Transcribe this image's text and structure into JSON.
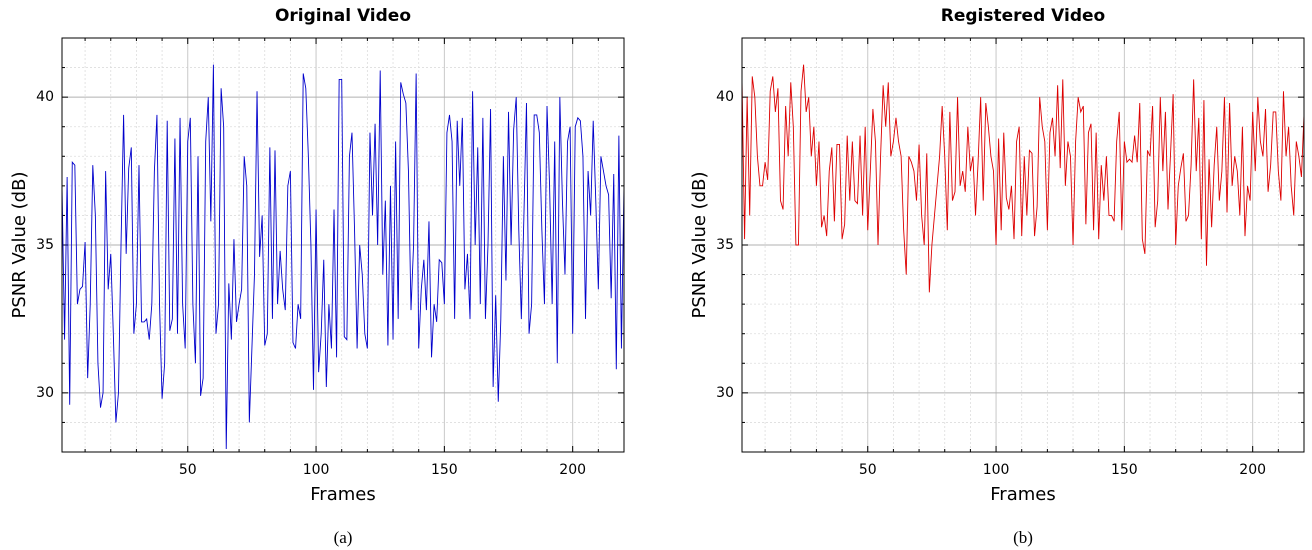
{
  "chart_data": [
    {
      "type": "line",
      "title": "Original Video",
      "xlabel": "Frames",
      "ylabel": "PSNR Value (dB)",
      "caption": "(a)",
      "color": "#0000cc",
      "xlim": [
        1,
        220
      ],
      "ylim": [
        28,
        42
      ],
      "xticks": [
        50,
        100,
        150,
        200
      ],
      "yticks": [
        30,
        35,
        40
      ],
      "xminorticks": [
        10,
        20,
        30,
        40,
        60,
        70,
        80,
        90,
        110,
        120,
        130,
        140,
        160,
        170,
        180,
        190,
        210,
        220
      ],
      "yminorticks": [
        29,
        31,
        32,
        33,
        34,
        36,
        37,
        38,
        39,
        41
      ],
      "grid": true,
      "x": [
        1,
        2,
        3,
        4,
        5,
        6,
        7,
        8,
        9,
        10,
        11,
        12,
        13,
        14,
        15,
        16,
        17,
        18,
        19,
        20,
        21,
        22,
        23,
        24,
        25,
        26,
        27,
        28,
        29,
        30,
        31,
        32,
        33,
        34,
        35,
        36,
        37,
        38,
        39,
        40,
        41,
        42,
        43,
        44,
        45,
        46,
        47,
        48,
        49,
        50,
        51,
        52,
        53,
        54,
        55,
        56,
        57,
        58,
        59,
        60,
        61,
        62,
        63,
        64,
        65,
        66,
        67,
        68,
        69,
        70,
        71,
        72,
        73,
        74,
        75,
        76,
        77,
        78,
        79,
        80,
        81,
        82,
        83,
        84,
        85,
        86,
        87,
        88,
        89,
        90,
        91,
        92,
        93,
        94,
        95,
        96,
        97,
        98,
        99,
        100,
        101,
        102,
        103,
        104,
        105,
        106,
        107,
        108,
        109,
        110,
        111,
        112,
        113,
        114,
        115,
        116,
        117,
        118,
        119,
        120,
        121,
        122,
        123,
        124,
        125,
        126,
        127,
        128,
        129,
        130,
        131,
        132,
        133,
        134,
        135,
        136,
        137,
        138,
        139,
        140,
        141,
        142,
        143,
        144,
        145,
        146,
        147,
        148,
        149,
        150,
        151,
        152,
        153,
        154,
        155,
        156,
        157,
        158,
        159,
        160,
        161,
        162,
        163,
        164,
        165,
        166,
        167,
        168,
        169,
        170,
        171,
        172,
        173,
        174,
        175,
        176,
        177,
        178,
        179,
        180,
        181,
        182,
        183,
        184,
        185,
        186,
        187,
        188,
        189,
        190,
        191,
        192,
        193,
        194,
        195,
        196,
        197,
        198,
        199,
        200,
        201,
        202,
        203,
        204,
        205,
        206,
        207,
        208,
        209,
        210,
        211,
        212,
        213,
        214,
        215,
        216,
        217,
        218,
        219,
        220
      ],
      "values": [
        37.0,
        31.8,
        37.3,
        29.6,
        37.8,
        37.7,
        33.0,
        33.5,
        33.6,
        35.1,
        30.5,
        33.0,
        37.7,
        36.0,
        31.0,
        29.5,
        30.0,
        37.5,
        33.5,
        34.7,
        32.0,
        29.0,
        30.0,
        35.0,
        39.4,
        34.7,
        37.6,
        38.3,
        32.0,
        33.0,
        37.7,
        32.4,
        32.4,
        32.5,
        31.8,
        33.0,
        37.5,
        39.4,
        33.0,
        29.8,
        31.0,
        39.2,
        32.1,
        32.5,
        38.6,
        32.0,
        39.3,
        33.0,
        31.5,
        38.5,
        39.3,
        33.0,
        31.0,
        38.0,
        29.9,
        30.5,
        38.5,
        40.0,
        35.8,
        41.1,
        32.0,
        33.0,
        40.3,
        39.0,
        28.1,
        33.7,
        31.8,
        35.2,
        32.4,
        33.0,
        33.5,
        38.0,
        37.0,
        29.0,
        31.5,
        34.0,
        40.2,
        34.6,
        36.0,
        31.6,
        32.0,
        38.3,
        32.5,
        38.2,
        33.0,
        34.8,
        33.5,
        32.8,
        37.0,
        37.5,
        31.7,
        31.5,
        33.0,
        32.5,
        40.8,
        40.3,
        38.0,
        35.0,
        30.1,
        36.2,
        30.7,
        32.0,
        34.5,
        30.2,
        33.0,
        31.5,
        36.2,
        31.2,
        40.6,
        40.6,
        31.9,
        31.8,
        38.0,
        38.8,
        35.5,
        31.5,
        35.0,
        34.0,
        32.0,
        31.5,
        38.8,
        36.0,
        39.1,
        35.0,
        40.9,
        34.0,
        36.5,
        31.6,
        37.0,
        31.8,
        38.5,
        32.5,
        40.5,
        40.1,
        39.8,
        37.5,
        32.8,
        35.0,
        40.8,
        31.5,
        33.5,
        34.5,
        32.8,
        35.8,
        31.2,
        33.0,
        32.4,
        34.5,
        34.4,
        33.0,
        38.8,
        39.4,
        38.5,
        32.5,
        39.2,
        37.0,
        39.3,
        33.5,
        34.7,
        32.5,
        40.2,
        35.0,
        38.3,
        33.0,
        39.3,
        32.5,
        35.0,
        39.6,
        30.2,
        33.3,
        29.7,
        32.5,
        38.0,
        33.8,
        39.5,
        35.0,
        38.9,
        40.0,
        35.5,
        32.5,
        36.0,
        39.8,
        32.0,
        33.0,
        39.4,
        39.4,
        38.8,
        35.5,
        33.0,
        39.7,
        37.0,
        33.0,
        38.5,
        31.0,
        40.0,
        36.5,
        34.0,
        38.5,
        39.0,
        32.0,
        39.0,
        39.3,
        39.2,
        38.0,
        32.5,
        37.5,
        36.0,
        39.2,
        36.5,
        33.5,
        38.0,
        37.5,
        37.0,
        36.7,
        33.2,
        37.4,
        30.8,
        38.7,
        31.5,
        37.0
      ]
    },
    {
      "type": "line",
      "title": "Registered Video",
      "xlabel": "Frames",
      "ylabel": "PSNR Value (dB)",
      "caption": "(b)",
      "color": "#dd0000",
      "xlim": [
        1,
        220
      ],
      "ylim": [
        28,
        42
      ],
      "xticks": [
        50,
        100,
        150,
        200
      ],
      "yticks": [
        30,
        35,
        40
      ],
      "xminorticks": [
        10,
        20,
        30,
        40,
        60,
        70,
        80,
        90,
        110,
        120,
        130,
        140,
        160,
        170,
        180,
        190,
        210,
        220
      ],
      "yminorticks": [
        29,
        31,
        32,
        33,
        34,
        36,
        37,
        38,
        39,
        41
      ],
      "grid": true,
      "x": [
        1,
        2,
        3,
        4,
        5,
        6,
        7,
        8,
        9,
        10,
        11,
        12,
        13,
        14,
        15,
        16,
        17,
        18,
        19,
        20,
        21,
        22,
        23,
        24,
        25,
        26,
        27,
        28,
        29,
        30,
        31,
        32,
        33,
        34,
        35,
        36,
        37,
        38,
        39,
        40,
        41,
        42,
        43,
        44,
        45,
        46,
        47,
        48,
        49,
        50,
        51,
        52,
        53,
        54,
        55,
        56,
        57,
        58,
        59,
        60,
        61,
        62,
        63,
        64,
        65,
        66,
        67,
        68,
        69,
        70,
        71,
        72,
        73,
        74,
        75,
        76,
        77,
        78,
        79,
        80,
        81,
        82,
        83,
        84,
        85,
        86,
        87,
        88,
        89,
        90,
        91,
        92,
        93,
        94,
        95,
        96,
        97,
        98,
        99,
        100,
        101,
        102,
        103,
        104,
        105,
        106,
        107,
        108,
        109,
        110,
        111,
        112,
        113,
        114,
        115,
        116,
        117,
        118,
        119,
        120,
        121,
        122,
        123,
        124,
        125,
        126,
        127,
        128,
        129,
        130,
        131,
        132,
        133,
        134,
        135,
        136,
        137,
        138,
        139,
        140,
        141,
        142,
        143,
        144,
        145,
        146,
        147,
        148,
        149,
        150,
        151,
        152,
        153,
        154,
        155,
        156,
        157,
        158,
        159,
        160,
        161,
        162,
        163,
        164,
        165,
        166,
        167,
        168,
        169,
        170,
        171,
        172,
        173,
        174,
        175,
        176,
        177,
        178,
        179,
        180,
        181,
        182,
        183,
        184,
        185,
        186,
        187,
        188,
        189,
        190,
        191,
        192,
        193,
        194,
        195,
        196,
        197,
        198,
        199,
        200,
        201,
        202,
        203,
        204,
        205,
        206,
        207,
        208,
        209,
        210,
        211,
        212,
        213,
        214,
        215,
        216,
        217,
        218,
        219,
        220
      ],
      "values": [
        40.6,
        35.2,
        40.0,
        36.0,
        40.7,
        40.0,
        38.0,
        37.0,
        37.0,
        37.8,
        37.2,
        40.2,
        40.7,
        39.5,
        40.3,
        36.5,
        36.2,
        39.7,
        38.0,
        40.5,
        39.0,
        35.0,
        35.0,
        40.2,
        41.1,
        39.5,
        40.0,
        38.0,
        39.0,
        37.0,
        38.5,
        35.6,
        36.0,
        35.3,
        37.5,
        38.3,
        35.8,
        38.4,
        38.4,
        35.2,
        35.7,
        38.7,
        36.5,
        38.5,
        36.5,
        36.4,
        38.7,
        36.0,
        39.0,
        35.5,
        37.5,
        39.6,
        38.5,
        35.0,
        38.0,
        40.4,
        39.0,
        40.5,
        38.0,
        38.5,
        39.3,
        38.5,
        38.0,
        35.5,
        34.0,
        38.0,
        37.8,
        37.5,
        36.5,
        38.4,
        36.0,
        35.0,
        38.1,
        33.4,
        35.0,
        36.0,
        37.0,
        38.0,
        39.7,
        38.0,
        35.5,
        39.5,
        36.5,
        36.8,
        40.0,
        37.0,
        37.5,
        36.8,
        39.0,
        37.5,
        38.0,
        36.0,
        37.8,
        40.0,
        36.5,
        39.8,
        39.0,
        38.0,
        37.5,
        35.0,
        38.6,
        35.5,
        38.8,
        36.6,
        36.2,
        37.0,
        35.2,
        38.5,
        39.0,
        35.3,
        38.0,
        36.0,
        38.2,
        38.1,
        35.3,
        36.3,
        40.0,
        39.0,
        38.5,
        35.5,
        38.8,
        39.3,
        38.0,
        40.4,
        37.6,
        40.6,
        37.0,
        38.5,
        38.0,
        35.0,
        38.5,
        40.0,
        39.5,
        39.7,
        35.7,
        38.8,
        39.1,
        35.5,
        38.8,
        35.2,
        37.7,
        36.5,
        38.0,
        36.0,
        36.0,
        35.8,
        38.5,
        39.5,
        35.5,
        38.5,
        37.8,
        37.9,
        37.8,
        38.7,
        37.8,
        39.8,
        35.2,
        34.7,
        38.2,
        38.0,
        39.7,
        35.6,
        36.5,
        40.0,
        37.5,
        39.5,
        36.2,
        38.1,
        40.1,
        35.0,
        37.0,
        37.6,
        38.1,
        35.8,
        36.0,
        37.7,
        40.6,
        37.5,
        39.3,
        35.2,
        39.9,
        34.3,
        37.9,
        35.6,
        37.7,
        39.0,
        36.5,
        37.5,
        40.0,
        36.1,
        39.8,
        37.0,
        38.0,
        37.5,
        36.0,
        39.0,
        35.3,
        37.0,
        36.5,
        39.5,
        37.5,
        40.0,
        38.5,
        38.0,
        39.6,
        36.8,
        37.7,
        39.5,
        39.5,
        37.5,
        36.5,
        40.2,
        38.0,
        39.0,
        37.0,
        36.0,
        38.5,
        38.0,
        37.3,
        39.4
      ]
    }
  ]
}
